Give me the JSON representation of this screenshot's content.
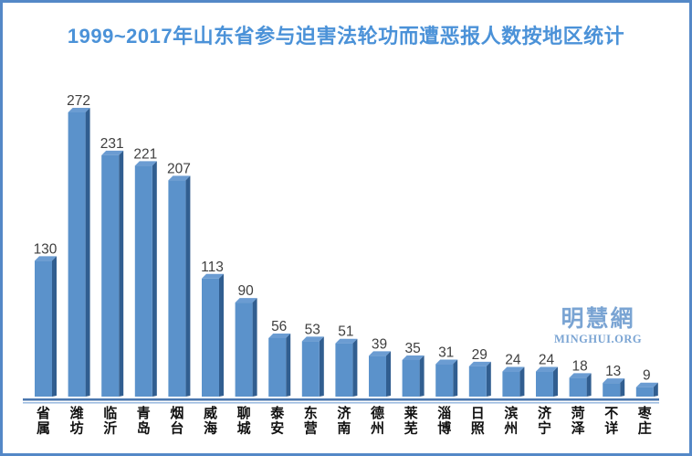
{
  "frame": {
    "border_color": "#5488c7",
    "background_color": "#ffffff"
  },
  "watermark": {
    "name": "明慧網",
    "domain": "MINGHUI.ORG",
    "color": "#7aa4d3"
  },
  "chart_data": {
    "type": "bar",
    "title": "1999~2017年山东省参与迫害法轮功而遭恶报人数按地区统计",
    "title_color": "#4b92d8",
    "categories": [
      "省属",
      "潍坊",
      "临沂",
      "青岛",
      "烟台",
      "威海",
      "聊城",
      "泰安",
      "东营",
      "济南",
      "德州",
      "莱芜",
      "淄博",
      "日照",
      "滨州",
      "济宁",
      "菏泽",
      "不详",
      "枣庄"
    ],
    "values": [
      130,
      272,
      231,
      221,
      207,
      113,
      90,
      56,
      53,
      51,
      39,
      35,
      31,
      29,
      24,
      24,
      18,
      13,
      9
    ],
    "value_labels_shown": true,
    "xlabel": "",
    "ylabel": "",
    "ylim": [
      0,
      280
    ],
    "grid": false,
    "legend": "none",
    "style": "3d-box",
    "colors": {
      "bar_face": "#5b92cb",
      "bar_top": "#6b9cd2",
      "bar_side": "#315e90",
      "value_label": "#3f3f3f",
      "category_label": "#111111",
      "axis_line": "#4a76ae",
      "axis_shadow_line": "#8fb3dc"
    }
  }
}
